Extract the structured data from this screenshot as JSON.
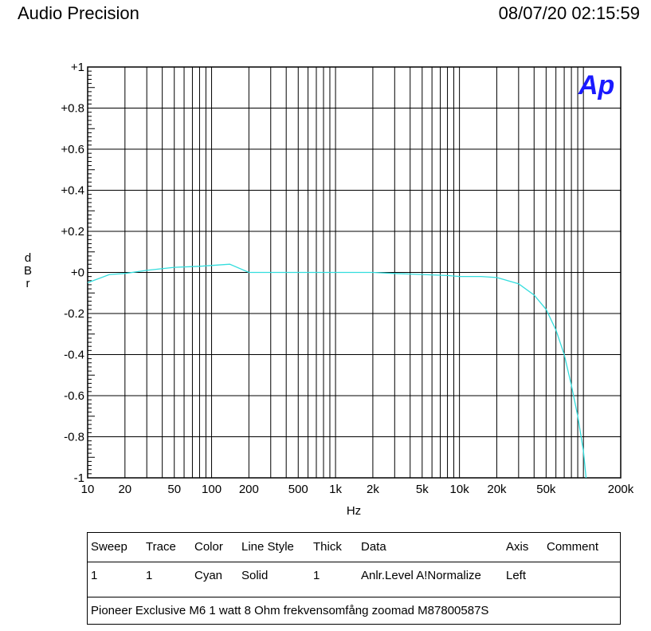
{
  "header": {
    "title": "Audio Precision",
    "datetime": "08/07/20 02:15:59"
  },
  "chart_data": {
    "type": "line",
    "xlabel": "Hz",
    "ylabel": "dBr",
    "ylabel_letters": [
      "d",
      "B",
      "r"
    ],
    "xscale": "log",
    "xlim": [
      10,
      200000
    ],
    "ylim": [
      -1,
      1
    ],
    "grid": true,
    "x_ticks": [
      10,
      20,
      50,
      100,
      200,
      500,
      1000,
      2000,
      5000,
      10000,
      20000,
      50000,
      200000
    ],
    "x_tick_labels": [
      "10",
      "20",
      "50",
      "100",
      "200",
      "500",
      "1k",
      "2k",
      "5k",
      "10k",
      "20k",
      "50k",
      "200k"
    ],
    "y_ticks": [
      1,
      0.8,
      0.6,
      0.4,
      0.2,
      0,
      -0.2,
      -0.4,
      -0.6,
      -0.8,
      -1
    ],
    "y_tick_labels": [
      "+1",
      "+0.8",
      "+0.6",
      "+0.4",
      "+0.2",
      "+0",
      "-0.2",
      "-0.4",
      "-0.6",
      "-0.8",
      "-1"
    ],
    "logo": "Ap",
    "series": [
      {
        "color": "#33dddd",
        "x": [
          10,
          15,
          20,
          30,
          50,
          80,
          140,
          200,
          500,
          1000,
          2000,
          3000,
          5000,
          8000,
          10000,
          15000,
          20000,
          30000,
          40000,
          50000,
          60000,
          70000,
          80000,
          90000,
          100000,
          105000
        ],
        "y": [
          -0.05,
          -0.01,
          -0.005,
          0.01,
          0.025,
          0.03,
          0.04,
          0.0,
          0.0,
          0.0,
          0.0,
          -0.005,
          -0.01,
          -0.015,
          -0.02,
          -0.02,
          -0.025,
          -0.055,
          -0.11,
          -0.18,
          -0.28,
          -0.4,
          -0.55,
          -0.7,
          -0.87,
          -1.0
        ]
      }
    ]
  },
  "legend": {
    "headers": [
      "Sweep",
      "Trace",
      "Color",
      "Line Style",
      "Thick",
      "Data",
      "Axis",
      "Comment"
    ],
    "rows": [
      [
        "1",
        "1",
        "Cyan",
        "Solid",
        "1",
        "Anlr.Level A!Normalize",
        "Left",
        ""
      ]
    ],
    "comment": "Pioneer Exclusive M6 1 watt 8 Ohm frekvensomfång zoomad M87800587S"
  }
}
